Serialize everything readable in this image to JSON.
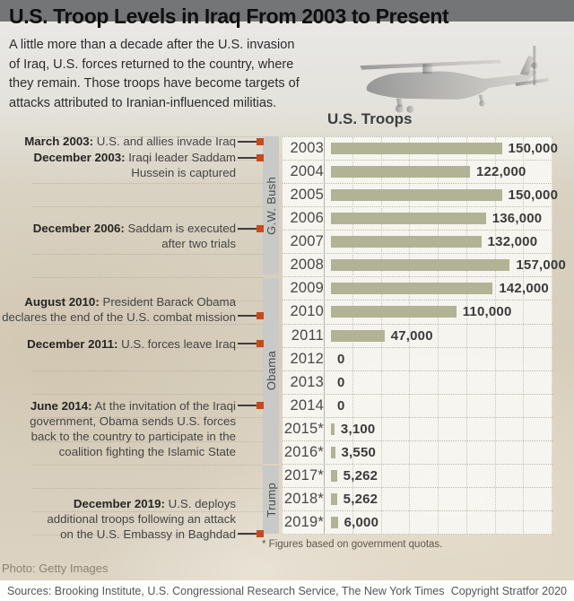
{
  "header": {
    "title": "U.S. Troop Levels in Iraq From 2003 to Present",
    "subtitle_lines": [
      "A little more than a decade after the U.S. invasion",
      "of Iraq, U.S. forces returned to the country, where",
      "they remain. Those troops have become targets of",
      "attacks attributed to Iranian-influenced militias."
    ]
  },
  "chart_data": {
    "type": "bar",
    "orientation": "horizontal",
    "title": "U.S. Troops",
    "categories": [
      "2003",
      "2004",
      "2005",
      "2006",
      "2007",
      "2008",
      "2009",
      "2010",
      "2011",
      "2012",
      "2013",
      "2014",
      "2015*",
      "2016*",
      "2017*",
      "2018*",
      "2019*"
    ],
    "values": [
      150000,
      122000,
      150000,
      136000,
      132000,
      157000,
      142000,
      110000,
      47000,
      0,
      0,
      0,
      3100,
      3550,
      5262,
      5262,
      6000
    ],
    "value_labels": [
      "150,000",
      "122,000",
      "150,000",
      "136,000",
      "132,000",
      "157,000",
      "142,000",
      "110,000",
      "47,000",
      "0",
      "0",
      "0",
      "3,100",
      "3,550",
      "5,262",
      "5,262",
      "6,000"
    ],
    "xlim": [
      0,
      200000
    ],
    "gridline_step": 25000,
    "grid": true,
    "bar_color": "#b2b394",
    "legend_position": "none"
  },
  "timeline": {
    "marker_color": "#c74a1e",
    "band_color": "#c9c9c7",
    "terms": [
      {
        "label": "G.W. Bush"
      },
      {
        "label": "Obama"
      },
      {
        "label": "Trump"
      }
    ],
    "annotations": [
      {
        "bold": "March 2003:",
        "lines": [
          "March 2003: U.S. and allies invade Iraq"
        ]
      },
      {
        "bold": "December 2003:",
        "lines": [
          "December 2003: Iraqi leader Saddam",
          "Hussein is captured"
        ]
      },
      {
        "bold": "December 2006:",
        "lines": [
          "December 2006: Saddam is executed",
          "after two trials"
        ]
      },
      {
        "bold": "August 2010:",
        "lines": [
          "August 2010: President Barack Obama",
          "declares the end of the U.S. combat mission"
        ]
      },
      {
        "bold": "December 2011:",
        "lines": [
          "December 2011: U.S. forces leave Iraq"
        ]
      },
      {
        "bold": "June 2014:",
        "lines": [
          "June 2014: At the invitation of the Iraqi",
          "government, Obama sends U.S. forces",
          "back to the country to participate in the",
          "coalition fighting the Islamic State"
        ]
      },
      {
        "bold": "December 2019:",
        "lines": [
          "December 2019: U.S. deploys",
          "additional troops following an attack",
          "on the U.S. Embassy in Baghdad"
        ]
      }
    ]
  },
  "footnote": "* Figures based on government quotas.",
  "photo_credit": "Photo: Getty Images",
  "footer": {
    "sources": "Sources: Brooking Institute, U.S. Congressional Research Service, The New York Times",
    "copyright": "Copyright Stratfor 2020"
  }
}
